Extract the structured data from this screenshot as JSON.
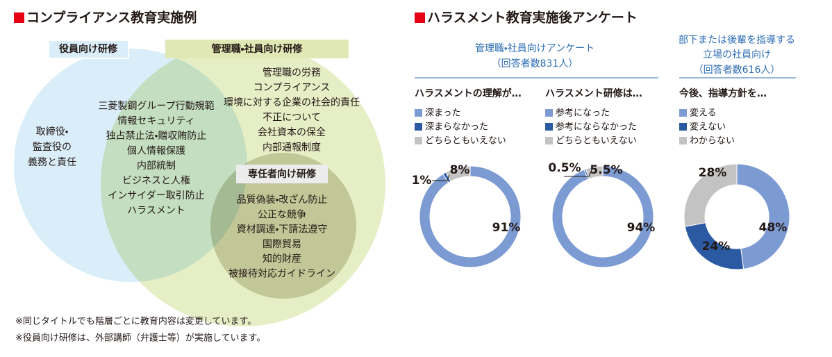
{
  "venn_section": {
    "title": "コンプライアンス教育実施例",
    "executive": {
      "label": "役員向け研修",
      "items": [
        "取締役・",
        "監査役の",
        "義務と責任"
      ]
    },
    "shared": {
      "items": [
        "三菱製鋼グループ行動規範",
        "情報セキュリティ",
        "独占禁止法・贈収賄防止",
        "個人情報保護",
        "内部統制",
        "ビジネスと人権",
        "インサイダー取引防止",
        "ハラスメント"
      ]
    },
    "manager": {
      "label": "管理職・社員向け研修",
      "items": [
        "管理職の労務",
        "コンプライアンス",
        "環境に対する企業の社会的責任",
        "不正について",
        "会社資本の保全",
        "内部通報制度"
      ]
    },
    "specialist": {
      "label": "専任者向け研修",
      "items": [
        "品質偽装・改ざん防止",
        "公正な競争",
        "資材調達・下請法遵守",
        "国際貿易",
        "知的財産",
        "被接待対応ガイドライン"
      ]
    },
    "notes": [
      "※同じタイトルでも階層ごとに教育内容は変更しています。",
      "※役員向け研修は、外部講師（弁護士等）が実施しています。"
    ]
  },
  "survey_section": {
    "title": "ハラスメント教育実施後アンケート",
    "group1": {
      "title": [
        "管理職・社員向けアンケート"
      ],
      "respondents": "（回答者数831人）"
    },
    "group2": {
      "title": [
        "部下または後輩を指導する",
        "立場の社員向け"
      ],
      "respondents": "（回答者数616人）"
    }
  },
  "chart_data": [
    {
      "type": "pie",
      "donut": true,
      "title": "ハラスメントの理解が…",
      "categories": [
        "深まった",
        "深まらなかった",
        "どちらともいえない"
      ],
      "values": [
        91,
        1,
        8
      ],
      "value_labels": [
        "91%",
        "1%",
        "8%"
      ],
      "colors": [
        "#7b9bd2",
        "#2b5aa2",
        "#c3c3c3"
      ]
    },
    {
      "type": "pie",
      "donut": true,
      "title": "ハラスメント研修は…",
      "categories": [
        "参考になった",
        "参考にならなかった",
        "どちらともいえない"
      ],
      "values": [
        94,
        0.5,
        5.5
      ],
      "value_labels": [
        "94%",
        "0.5%",
        "5.5%"
      ],
      "colors": [
        "#7b9bd2",
        "#2b5aa2",
        "#c3c3c3"
      ]
    },
    {
      "type": "pie",
      "donut": true,
      "title": "今後、指導方針を…",
      "categories": [
        "変える",
        "変えない",
        "わからない"
      ],
      "values": [
        48,
        24,
        28
      ],
      "value_labels": [
        "48%",
        "24%",
        "28%"
      ],
      "colors": [
        "#7b9bd2",
        "#2b5aa2",
        "#c3c3c3"
      ]
    }
  ]
}
